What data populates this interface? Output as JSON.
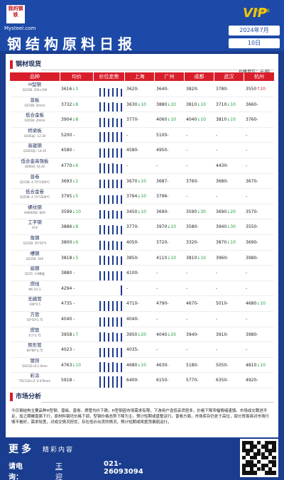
{
  "header": {
    "logo_cn": "我的钢铁",
    "logo_en": "Mysteel.com",
    "vip_badge": "VIP",
    "vip_sub": "中国钢联",
    "title": "钢结构原料日报",
    "month": "2024年7月",
    "day": "10日",
    "colors": {
      "brand_blue": "#1d4aa8",
      "accent_red": "#d81e2b",
      "up": "#d81e2b",
      "down": "#1e9c3c"
    }
  },
  "prices_section": {
    "title": "钢材现货",
    "unit": "价格单位：元/吨",
    "columns": [
      "品种",
      "均价",
      "价位走势",
      "上海",
      "广州",
      "成都",
      "武汉",
      "杭州"
    ],
    "rows": [
      {
        "name": "H型钢",
        "spec": "Q235B: 200×100",
        "avg": "3616",
        "avg_chg": "↓3",
        "avg_dir": "dn",
        "trend": [
          12,
          12,
          11,
          12,
          12,
          11
        ],
        "cities": [
          {
            "v": "3620",
            "c": "-"
          },
          {
            "v": "3640",
            "c": "-"
          },
          {
            "v": "3820",
            "c": "-"
          },
          {
            "v": "3780",
            "c": "-"
          },
          {
            "v": "3550",
            "c": "↑20",
            "d": "up"
          }
        ]
      },
      {
        "name": "普板",
        "spec": "Q235B: 20mm",
        "avg": "3732",
        "avg_chg": "↓8",
        "avg_dir": "dn",
        "trend": [
          13,
          13,
          12,
          13,
          12,
          12
        ],
        "cities": [
          {
            "v": "3630",
            "c": "↓10",
            "d": "dn"
          },
          {
            "v": "3880",
            "c": "↓10",
            "d": "dn"
          },
          {
            "v": "3810",
            "c": "↓10",
            "d": "dn"
          },
          {
            "v": "3710",
            "c": "↓10",
            "d": "dn"
          },
          {
            "v": "3660",
            "c": "-"
          }
        ]
      },
      {
        "name": "低合金板",
        "spec": "Q355B: 20mm",
        "avg": "3904",
        "avg_chg": "↓8",
        "avg_dir": "dn",
        "trend": [
          13,
          13,
          12,
          13,
          12,
          12
        ],
        "cities": [
          {
            "v": "3770",
            "c": "-"
          },
          {
            "v": "4060",
            "c": "↓10",
            "d": "dn"
          },
          {
            "v": "4040",
            "c": "↓10",
            "d": "dn"
          },
          {
            "v": "3810",
            "c": "↓10",
            "d": "dn"
          },
          {
            "v": "3760",
            "c": "-"
          }
        ]
      },
      {
        "name": "桥梁板",
        "spec": "Q345qC: 12-30",
        "avg": "5200",
        "avg_chg": "-",
        "avg_dir": "",
        "trend": [
          14,
          14,
          14,
          14,
          14,
          14
        ],
        "cities": [
          {
            "v": "-",
            "c": ""
          },
          {
            "v": "5100",
            "c": "-"
          },
          {
            "v": "-",
            "c": ""
          },
          {
            "v": "-",
            "c": ""
          },
          {
            "v": "-",
            "c": ""
          }
        ]
      },
      {
        "name": "高建钢",
        "spec": "Q345GJC: 14-20",
        "avg": "4580",
        "avg_chg": "-",
        "avg_dir": "",
        "trend": [
          13,
          13,
          13,
          13,
          13,
          13
        ],
        "cities": [
          {
            "v": "4580",
            "c": "-"
          },
          {
            "v": "4950",
            "c": "-"
          },
          {
            "v": "-",
            "c": ""
          },
          {
            "v": "-",
            "c": ""
          },
          {
            "v": "-",
            "c": ""
          }
        ]
      },
      {
        "name": "低合金高强板",
        "spec": "Q690D: 16-20",
        "avg": "4770",
        "avg_chg": "↓6",
        "avg_dir": "dn",
        "trend": [
          14,
          14,
          13,
          14,
          13,
          13
        ],
        "cities": [
          {
            "v": "-",
            "c": ""
          },
          {
            "v": "-",
            "c": ""
          },
          {
            "v": "-",
            "c": ""
          },
          {
            "v": "4430",
            "c": "-"
          },
          {
            "v": "-",
            "c": ""
          }
        ]
      },
      {
        "name": "普卷",
        "spec": "Q235B: 4.75*1500*C",
        "avg": "3693",
        "avg_chg": "↓2",
        "avg_dir": "dn",
        "trend": [
          12,
          12,
          12,
          12,
          12,
          12
        ],
        "cities": [
          {
            "v": "3670",
            "c": "↓10",
            "d": "dn"
          },
          {
            "v": "3687",
            "c": "-"
          },
          {
            "v": "3760",
            "c": "-"
          },
          {
            "v": "3680",
            "c": "-"
          },
          {
            "v": "3670",
            "c": "-"
          }
        ]
      },
      {
        "name": "低合金卷",
        "spec": "Q355B: 4.75*1500*C",
        "avg": "3795",
        "avg_chg": "↓5",
        "avg_dir": "dn",
        "trend": [
          12,
          12,
          12,
          12,
          12,
          12
        ],
        "cities": [
          {
            "v": "3794",
            "c": "↓10",
            "d": "dn"
          },
          {
            "v": "3796",
            "c": "-"
          },
          {
            "v": "-",
            "c": ""
          },
          {
            "v": "-",
            "c": ""
          },
          {
            "v": "-",
            "c": ""
          }
        ]
      },
      {
        "name": "螺纹钢",
        "spec": "HRB400E: Φ20",
        "avg": "3599",
        "avg_chg": "↓10",
        "avg_dir": "dn",
        "trend": [
          12,
          12,
          11,
          12,
          11,
          11
        ],
        "cities": [
          {
            "v": "3450",
            "c": "↓10",
            "d": "dn"
          },
          {
            "v": "3690",
            "c": "-"
          },
          {
            "v": "3590",
            "c": "↓30",
            "d": "dn"
          },
          {
            "v": "3690",
            "c": "↓20",
            "d": "dn"
          },
          {
            "v": "3570",
            "c": "-"
          }
        ]
      },
      {
        "name": "工字钢",
        "spec": "25#",
        "avg": "3886",
        "avg_chg": "↓8",
        "avg_dir": "dn",
        "trend": [
          13,
          13,
          12,
          13,
          12,
          12
        ],
        "cities": [
          {
            "v": "3770",
            "c": "-"
          },
          {
            "v": "3970",
            "c": "↓10",
            "d": "dn"
          },
          {
            "v": "3580",
            "c": "-"
          },
          {
            "v": "3940",
            "c": "↓30",
            "d": "dn"
          },
          {
            "v": "3550",
            "c": "-"
          }
        ]
      },
      {
        "name": "角钢",
        "spec": "Q235B: 50*50*5",
        "avg": "3800",
        "avg_chg": "↓6",
        "avg_dir": "dn",
        "trend": [
          13,
          13,
          12,
          13,
          12,
          12
        ],
        "cities": [
          {
            "v": "4050",
            "c": "-"
          },
          {
            "v": "3720",
            "c": "-"
          },
          {
            "v": "3320",
            "c": "-"
          },
          {
            "v": "3870",
            "c": "↓10",
            "d": "dn"
          },
          {
            "v": "3690",
            "c": "-"
          }
        ]
      },
      {
        "name": "槽钢",
        "spec": "Q235B: 16#",
        "avg": "3818",
        "avg_chg": "↓5",
        "avg_dir": "dn",
        "trend": [
          13,
          13,
          12,
          13,
          12,
          12
        ],
        "cities": [
          {
            "v": "3850",
            "c": "-"
          },
          {
            "v": "4110",
            "c": "↓10",
            "d": "dn"
          },
          {
            "v": "3810",
            "c": "↓10",
            "d": "dn"
          },
          {
            "v": "3960",
            "c": "-"
          },
          {
            "v": "3980",
            "c": "-"
          }
        ]
      },
      {
        "name": "扁钢",
        "spec": "Q235: 3-8厚度",
        "avg": "3880",
        "avg_chg": "-",
        "avg_dir": "",
        "trend": [
          13,
          13,
          13,
          13,
          13,
          13
        ],
        "cities": [
          {
            "v": "4100",
            "c": "-"
          },
          {
            "v": "-",
            "c": ""
          },
          {
            "v": "-",
            "c": ""
          },
          {
            "v": "-",
            "c": ""
          },
          {
            "v": "-",
            "c": ""
          }
        ]
      },
      {
        "name": "焊线",
        "spec": "Φ6.5/1.5",
        "avg": "4294",
        "avg_chg": "-",
        "avg_dir": "",
        "trend": [
          0,
          0,
          0,
          0,
          0,
          14
        ],
        "cities": [
          {
            "v": "-",
            "c": ""
          },
          {
            "v": "-",
            "c": ""
          },
          {
            "v": "-",
            "c": ""
          },
          {
            "v": "-",
            "c": ""
          },
          {
            "v": "-",
            "c": ""
          }
        ]
      },
      {
        "name": "无缝管",
        "spec": "108*4.5",
        "avg": "4735",
        "avg_chg": "-",
        "avg_dir": "",
        "trend": [
          14,
          14,
          14,
          14,
          14,
          14
        ],
        "cities": [
          {
            "v": "4710",
            "c": "-"
          },
          {
            "v": "4790",
            "c": "-"
          },
          {
            "v": "4670",
            "c": "-"
          },
          {
            "v": "5010",
            "c": "-"
          },
          {
            "v": "4680",
            "c": "↓10",
            "d": "dn"
          }
        ]
      },
      {
        "name": "方管",
        "spec": "50*50*2.75",
        "avg": "4040",
        "avg_chg": "-",
        "avg_dir": "",
        "trend": [
          13,
          13,
          13,
          13,
          13,
          13
        ],
        "cities": [
          {
            "v": "4040",
            "c": "-"
          },
          {
            "v": "-",
            "c": ""
          },
          {
            "v": "-",
            "c": ""
          },
          {
            "v": "-",
            "c": ""
          },
          {
            "v": "-",
            "c": ""
          }
        ]
      },
      {
        "name": "焊管",
        "spec": "4寸*3.75",
        "avg": "3958",
        "avg_chg": "↓7",
        "avg_dir": "dn",
        "trend": [
          13,
          13,
          12,
          13,
          12,
          12
        ],
        "cities": [
          {
            "v": "3950",
            "c": "↓20",
            "d": "dn"
          },
          {
            "v": "4040",
            "c": "↓20",
            "d": "dn"
          },
          {
            "v": "3940",
            "c": "-"
          },
          {
            "v": "3910",
            "c": "-"
          },
          {
            "v": "3980",
            "c": "-"
          }
        ]
      },
      {
        "name": "矩形管",
        "spec": "60*80*3.75",
        "avg": "4023",
        "avg_chg": "-",
        "avg_dir": "",
        "trend": [
          13,
          13,
          13,
          13,
          13,
          13
        ],
        "cities": [
          {
            "v": "4035",
            "c": "-"
          },
          {
            "v": "-",
            "c": ""
          },
          {
            "v": "-",
            "c": ""
          },
          {
            "v": "-",
            "c": ""
          },
          {
            "v": "-",
            "c": ""
          }
        ]
      },
      {
        "name": "镀锌",
        "spec": "DX51D+Z:1.0mm",
        "avg": "4763",
        "avg_chg": "↓10",
        "avg_dir": "dn",
        "trend": [
          14,
          14,
          13,
          14,
          13,
          13
        ],
        "cities": [
          {
            "v": "4680",
            "c": "↓10",
            "d": "dn"
          },
          {
            "v": "4630",
            "c": "-"
          },
          {
            "v": "5180",
            "c": "-"
          },
          {
            "v": "5050",
            "c": "-"
          },
          {
            "v": "4810",
            "c": "↓10",
            "d": "dn"
          }
        ]
      },
      {
        "name": "彩涂",
        "spec": "TDC51D+Z: 0.476mm",
        "avg": "5918",
        "avg_chg": "-",
        "avg_dir": "",
        "trend": [
          16,
          16,
          16,
          16,
          16,
          16
        ],
        "cities": [
          {
            "v": "6400",
            "c": "-"
          },
          {
            "v": "6150",
            "c": "-"
          },
          {
            "v": "5770",
            "c": "-"
          },
          {
            "v": "6350",
            "c": "-"
          },
          {
            "v": "4920",
            "c": "-"
          }
        ]
      }
    ]
  },
  "analysis_section": {
    "title": "市场分析",
    "text": "今日钢结构主要品种H型钢、普板、普卷、焊管均价下跌。H型钢因市场需求有限，下游用户逢低采货居多，价格下降窄幅情绪谨慎。市场成交跟进不足，加之期螺盘面下行，原材料钢坯价格下调，型钢价格态势下降为主。预计短期或盘整运行。普卷方面，市场库存仍处于高位，部分贸易商对市场行情不看好，需求较差，对成交情况担忧，存在低价出货的情况，预计短期或将震荡偏弱运行。"
  },
  "footer": {
    "more": "更多",
    "more_sub": "精彩内容",
    "contact_label": "请电询：",
    "contact_name": "王迎旭",
    "contact_phone": "021-26093094"
  }
}
